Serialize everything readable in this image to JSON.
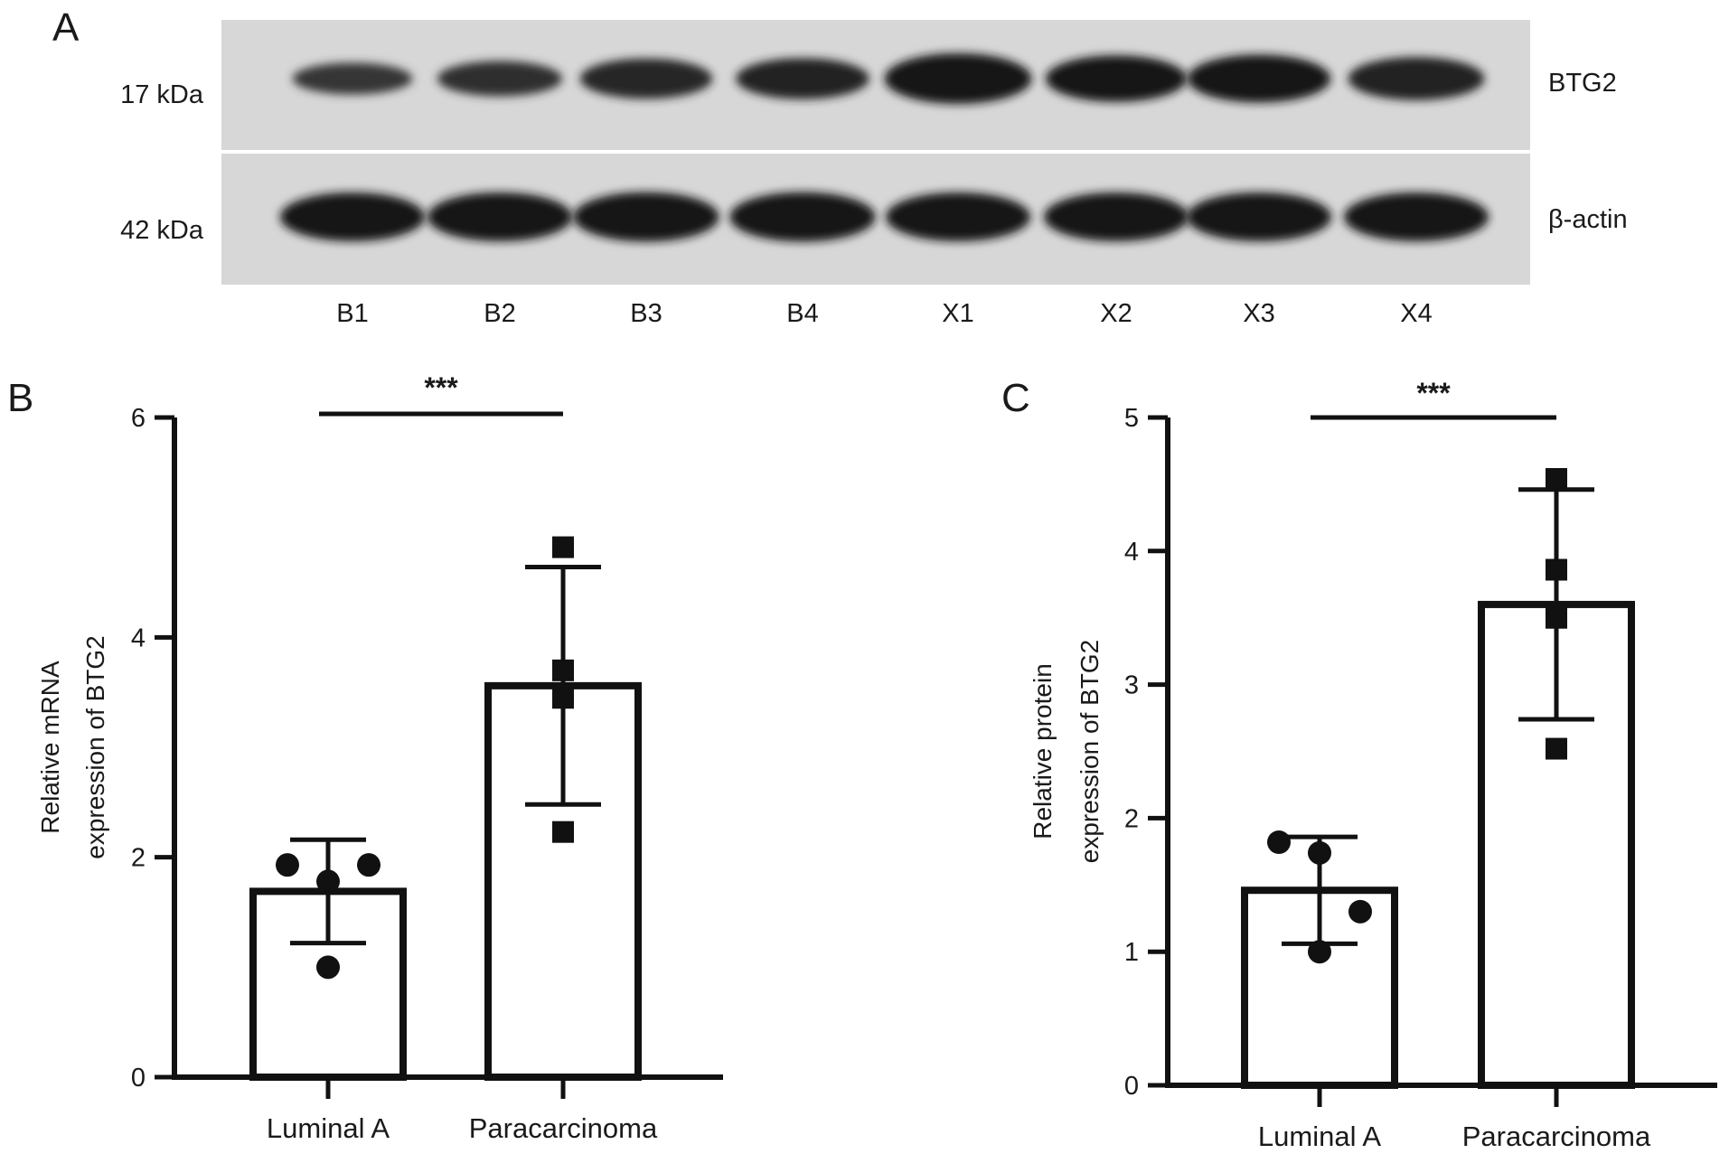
{
  "panel_a": {
    "letter": "A",
    "lanes": [
      "B1",
      "B2",
      "B3",
      "B4",
      "X1",
      "X2",
      "X3",
      "X4"
    ],
    "rows": [
      {
        "size": "17 kDa",
        "protein": "BTG2",
        "band_intensity": [
          0.45,
          0.55,
          0.7,
          0.72,
          1.0,
          0.88,
          0.92,
          0.78
        ]
      },
      {
        "size": "42 kDa",
        "protein": "β-actin",
        "band_intensity": [
          0.95,
          0.95,
          0.97,
          0.97,
          0.95,
          0.95,
          0.95,
          0.95
        ]
      }
    ]
  },
  "chart_data": [
    {
      "panel": "B",
      "type": "bar",
      "categories": [
        "Luminal A",
        "Paracarcinoma"
      ],
      "values": [
        1.69,
        3.56
      ],
      "error_sd": [
        0.47,
        1.08
      ],
      "points": [
        [
          1.93,
          1.78,
          1.93,
          1.0
        ],
        [
          4.82,
          3.7,
          3.45,
          2.23
        ]
      ],
      "point_markers": [
        "circle",
        "square"
      ],
      "ylabel_lines": [
        "Relative mRNA",
        "expression of BTG2"
      ],
      "yticks": [
        "0",
        "2",
        "4",
        "6"
      ],
      "ylim": [
        0,
        6
      ],
      "significance": "***"
    },
    {
      "panel": "C",
      "type": "bar",
      "categories": [
        "Luminal A",
        "Paracarcinoma"
      ],
      "values": [
        1.46,
        3.6
      ],
      "error_sd": [
        0.4,
        0.86
      ],
      "points": [
        [
          1.82,
          1.74,
          1.3,
          1.0
        ],
        [
          4.54,
          3.86,
          3.5,
          2.52
        ]
      ],
      "point_markers": [
        "circle",
        "square"
      ],
      "ylabel_lines": [
        "Relative protein",
        "expression of BTG2"
      ],
      "yticks": [
        "0",
        "1",
        "2",
        "3",
        "4",
        "5"
      ],
      "ylim": [
        0,
        5
      ],
      "significance": "***"
    }
  ]
}
